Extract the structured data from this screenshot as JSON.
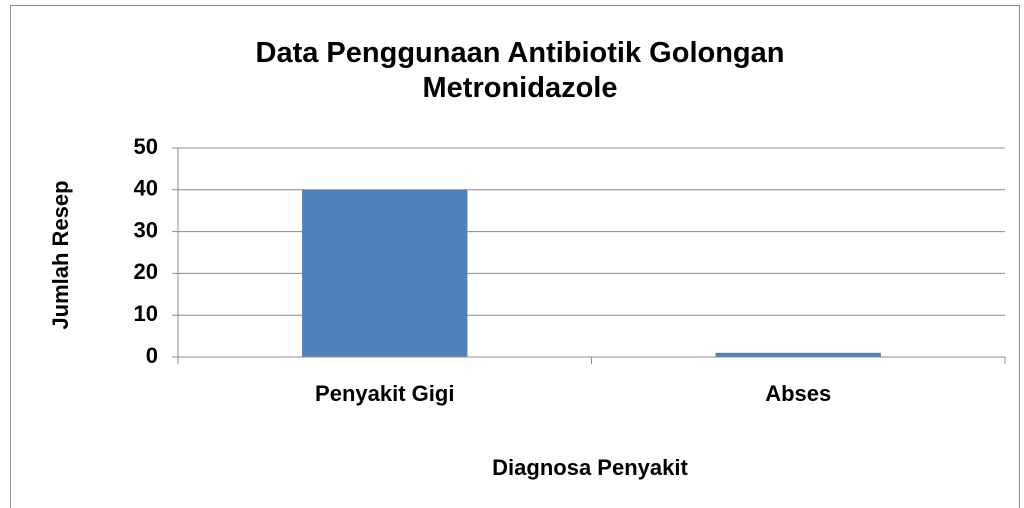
{
  "chart_data": {
    "type": "bar",
    "title": "Data Penggunaan Antibiotik Golongan Metronidazole",
    "x_label": "Diagnosa Penyakit",
    "y_label": "Jumlah Resep",
    "categories": [
      "Penyakit Gigi",
      "Abses"
    ],
    "values": [
      40,
      1
    ],
    "color": "#4f81bd",
    "ylim": [
      0,
      50
    ],
    "yticks": [
      0,
      10,
      20,
      30,
      40,
      50
    ],
    "grid": true
  }
}
